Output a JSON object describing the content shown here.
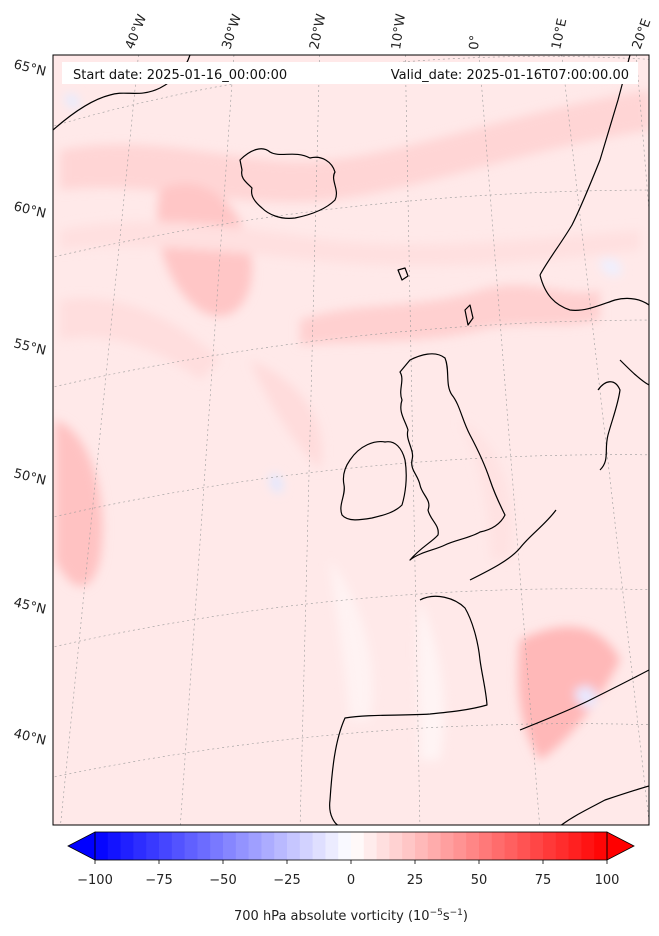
{
  "header": {
    "start_date": "Start date: 2025-01-16_00:00:00",
    "valid_date": "Valid_date: 2025-01-16T07:00:00.00"
  },
  "lon_labels": [
    "40°W",
    "30°W",
    "20°W",
    "10°W",
    "0°",
    "10°E",
    "20°E"
  ],
  "lat_labels": [
    "65°N",
    "60°N",
    "55°N",
    "50°N",
    "45°N",
    "40°N"
  ],
  "colorbar": {
    "ticks": [
      "−100",
      "−75",
      "−50",
      "−25",
      "0",
      "25",
      "50",
      "75",
      "100"
    ],
    "label_main": "700 hPa absolute vorticity (10",
    "label_exp1": "−5",
    "label_mid": "s",
    "label_exp2": "−1",
    "label_end": ")",
    "min": -100,
    "max": 100,
    "levels": 40,
    "colors": {
      "low": "#0000ff",
      "mid": "#ffffff",
      "high": "#ff0000"
    }
  },
  "map": {
    "land_outline_color": "#000000",
    "gridline_color": "#9a9a9a"
  }
}
